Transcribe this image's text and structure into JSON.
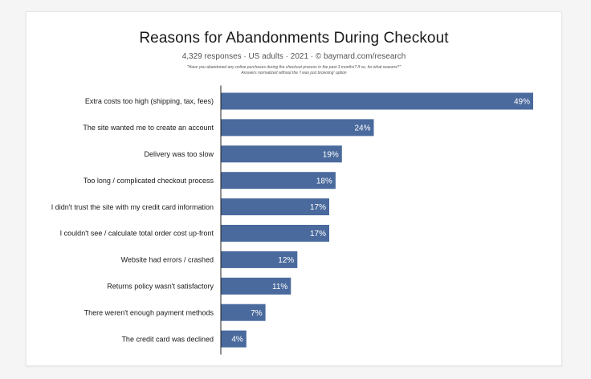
{
  "chart_data": {
    "type": "bar",
    "orientation": "horizontal",
    "title": "Reasons for Abandonments During Checkout",
    "subtitle": "4,329 responses · US adults · 2021 · © baymard.com/research",
    "note_lines": [
      "\"Have you abandoned any online purchases during the checkout process in the past 3 months? If so, for what reasons?\"",
      "Answers normalized without the 'I was just browsing' option"
    ],
    "categories": [
      "Extra costs too high (shipping, tax, fees)",
      "The site wanted me to create an account",
      "Delivery was too slow",
      "Too long / complicated checkout process",
      "I didn't trust the site with my credit card information",
      "I couldn't see / calculate total order cost up-front",
      "Website had errors / crashed",
      "Returns policy wasn't satisfactory",
      "There weren't enough payment methods",
      "The credit card was declined"
    ],
    "values": [
      49,
      24,
      19,
      18,
      17,
      17,
      12,
      11,
      7,
      4
    ],
    "value_labels": [
      "49%",
      "24%",
      "19%",
      "18%",
      "17%",
      "17%",
      "12%",
      "11%",
      "7%",
      "4%"
    ],
    "unit": "%",
    "xlim": [
      0,
      49
    ],
    "grid": false,
    "legend": "none",
    "bar_color": "#4a6a9d",
    "label_color": "#ffffff"
  }
}
